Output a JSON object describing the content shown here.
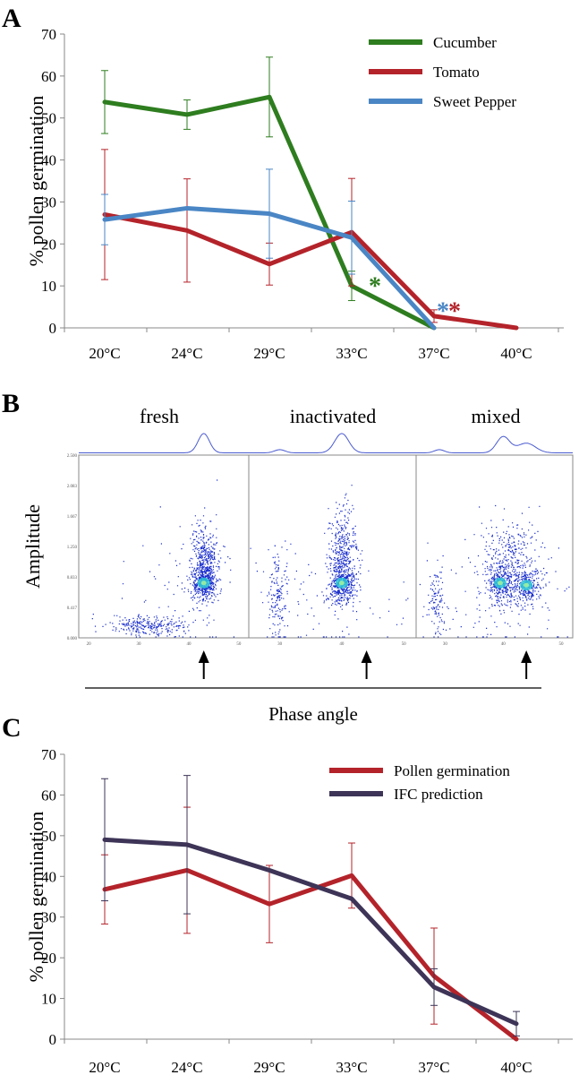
{
  "panels": {
    "A": "A",
    "B": "B",
    "C": "C"
  },
  "chart_data": [
    {
      "type": "line",
      "panel": "A",
      "categories": [
        "20°C",
        "24°C",
        "29°C",
        "33°C",
        "37°C",
        "40°C"
      ],
      "ylabel": "% pollen germination",
      "ylim": [
        0,
        70
      ],
      "yticks": [
        "0",
        "10",
        "20",
        "30",
        "40",
        "50",
        "60",
        "70"
      ],
      "legend_position": "top-right",
      "series": [
        {
          "name": "Cucumber",
          "color": "#2e7d1f",
          "values": [
            53.8,
            50.8,
            55.0,
            10.0,
            0,
            null
          ],
          "err": [
            7.5,
            3.5,
            9.5,
            3.5,
            0,
            null
          ]
        },
        {
          "name": "Tomato",
          "color": "#b4232a",
          "values": [
            27.0,
            23.2,
            15.2,
            22.8,
            2.8,
            0
          ],
          "err": [
            15.5,
            12.3,
            5.0,
            12.8,
            1.5,
            0
          ]
        },
        {
          "name": "Sweet Pepper",
          "color": "#4a86c5",
          "values": [
            25.8,
            28.5,
            27.2,
            21.5,
            0,
            null
          ],
          "err": [
            6.0,
            0,
            10.6,
            8.7,
            0,
            null
          ]
        }
      ],
      "annotations": [
        {
          "text": "*",
          "category": "33°C",
          "y": 11,
          "color": "#2e7d1f"
        },
        {
          "text": "*",
          "category": "37°C",
          "y": 5,
          "color": "#4a86c5"
        },
        {
          "text": "*",
          "category": "37°C",
          "y": 5,
          "color": "#b4232a"
        }
      ]
    },
    {
      "type": "scatter",
      "panel": "B",
      "ylabel": "Amplitude",
      "xlabel": "Phase angle",
      "subplots": [
        {
          "title": "fresh",
          "xticks": [
            "20",
            "30",
            "40",
            "50"
          ],
          "arrow_x": 43
        },
        {
          "title": "inactivated",
          "xticks": [
            "30",
            "40",
            "50"
          ],
          "arrow_x": 44
        },
        {
          "title": "mixed",
          "xticks": [
            "30",
            "40",
            "50"
          ],
          "arrow_x": 44
        }
      ],
      "yticks": [
        "0.000",
        "0.417",
        "0.833",
        "1.250",
        "1.667",
        "2.083",
        "2.500"
      ],
      "colors": {
        "points": "#1a2ecc",
        "dense": "#2fc8d6",
        "histogram": "#4a5bd0",
        "frame": "#888888"
      }
    },
    {
      "type": "line",
      "panel": "C",
      "categories": [
        "20°C",
        "24°C",
        "29°C",
        "33°C",
        "37°C",
        "40°C"
      ],
      "ylabel": "% pollen germination",
      "ylim": [
        0,
        70
      ],
      "yticks": [
        "0",
        "10",
        "20",
        "30",
        "40",
        "50",
        "60",
        "70"
      ],
      "legend_position": "top-right",
      "series": [
        {
          "name": "Pollen germination",
          "color": "#b4232a",
          "values": [
            36.8,
            41.5,
            33.2,
            40.2,
            15.5,
            0
          ],
          "err": [
            8.5,
            15.5,
            9.5,
            8.0,
            11.8,
            0
          ]
        },
        {
          "name": "IFC prediction",
          "color": "#3d3457",
          "values": [
            49.0,
            47.8,
            41.5,
            34.5,
            12.8,
            3.8
          ],
          "err": [
            15.0,
            17.0,
            0,
            0,
            4.5,
            3.0
          ]
        }
      ]
    }
  ]
}
